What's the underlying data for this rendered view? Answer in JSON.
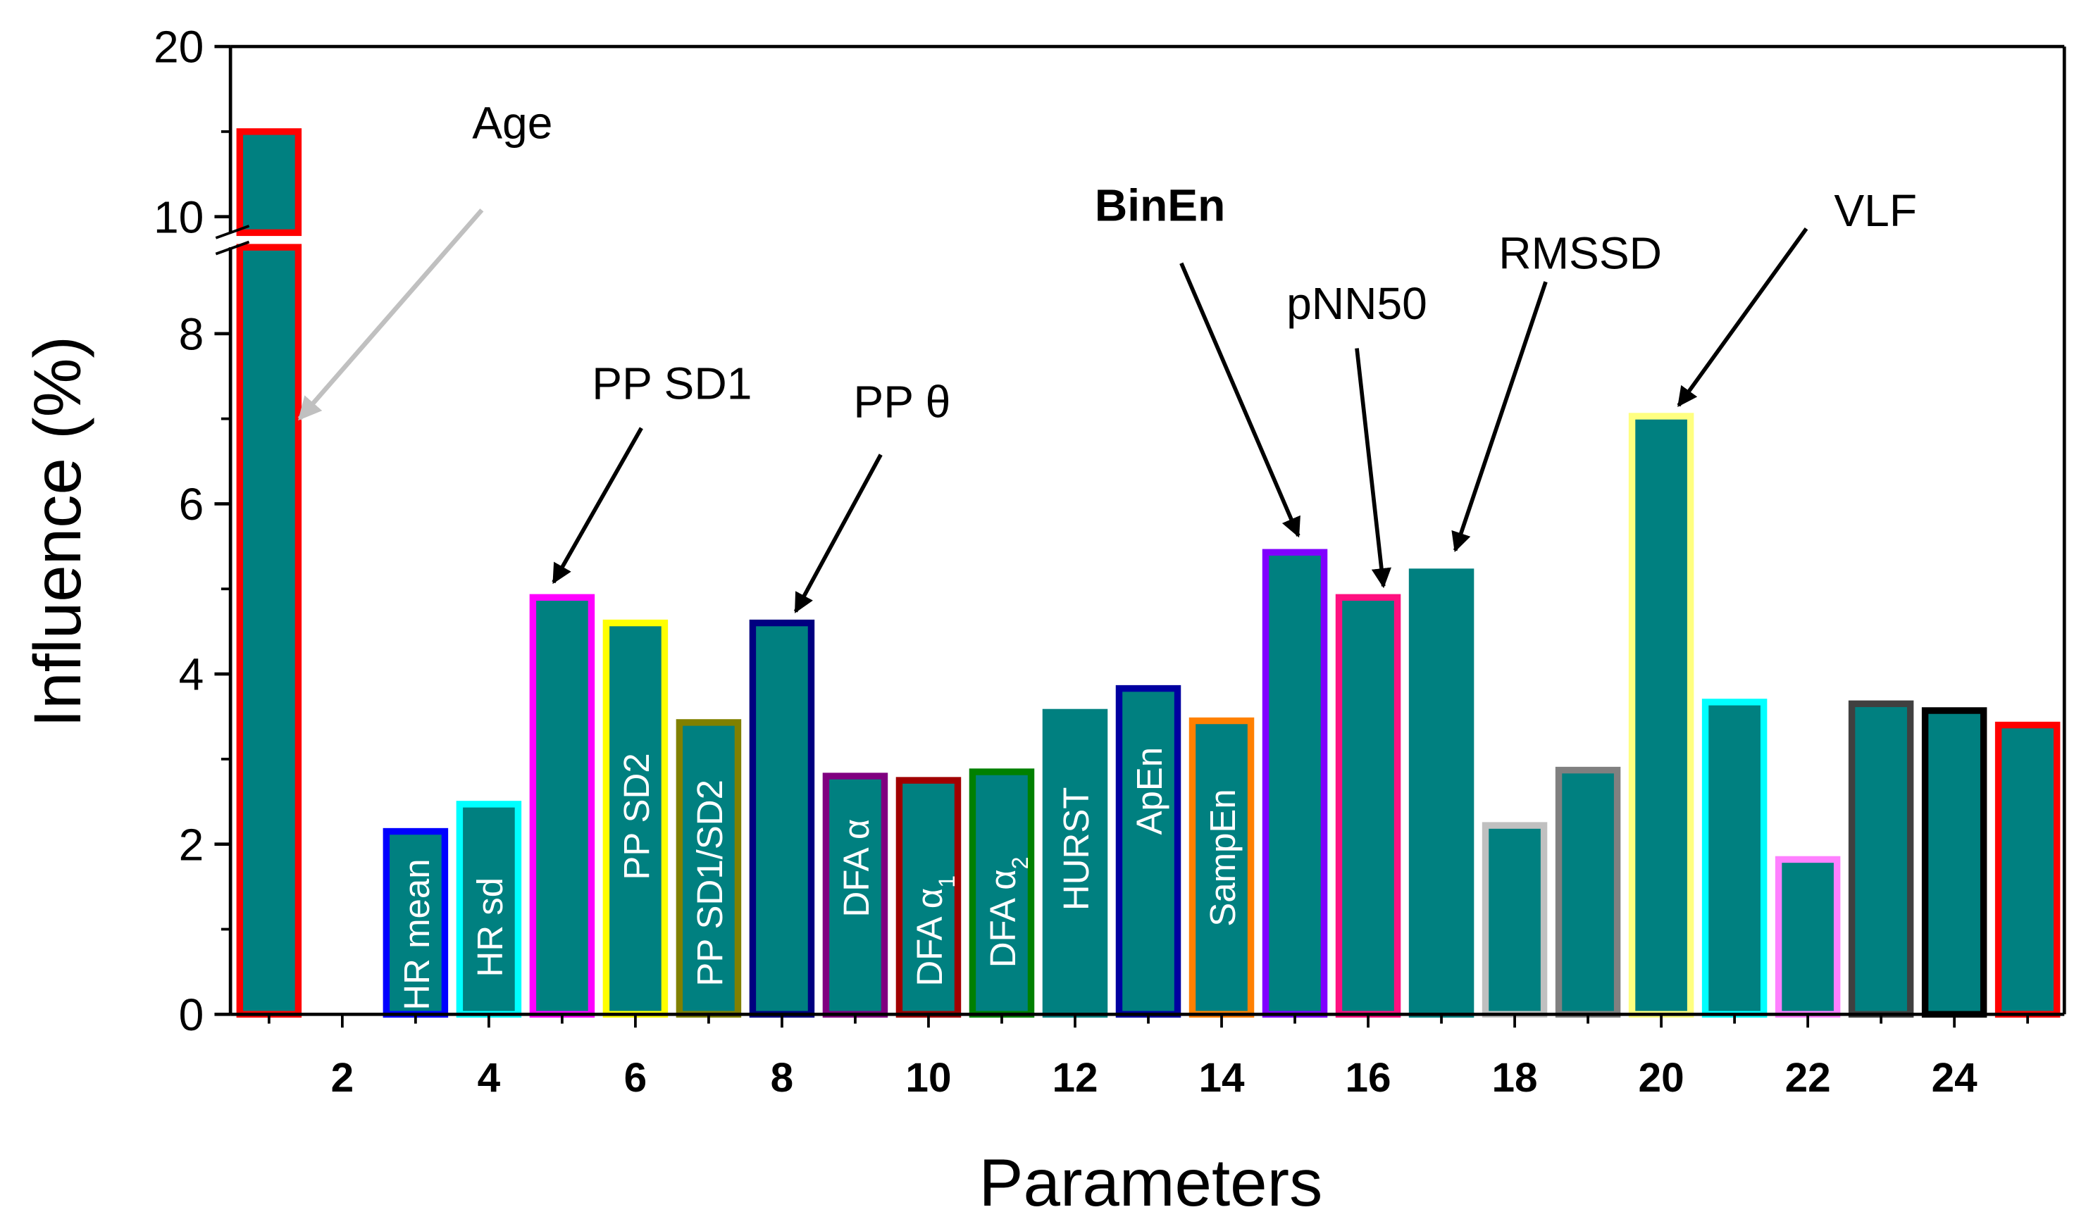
{
  "chart_data": {
    "type": "bar",
    "xlabel": "Parameters",
    "ylabel": "Influence (%)",
    "ylim": [
      0,
      20
    ],
    "y_break": [
      9.1,
      10
    ],
    "y_ticks_lower": [
      "0",
      "2",
      "4",
      "6",
      "8"
    ],
    "y_ticks_upper": [
      "10",
      "20"
    ],
    "x_ticks": [
      "2",
      "4",
      "6",
      "8",
      "10",
      "12",
      "14",
      "16",
      "18",
      "20",
      "22",
      "24"
    ],
    "x": [
      1,
      2,
      3,
      4,
      5,
      6,
      7,
      8,
      9,
      10,
      11,
      12,
      13,
      14,
      15,
      16,
      17,
      18,
      19,
      20,
      21,
      22,
      23,
      24,
      25
    ],
    "values": [
      15.0,
      0,
      2.15,
      2.47,
      4.9,
      4.6,
      3.43,
      4.6,
      2.8,
      2.75,
      2.85,
      3.55,
      3.83,
      3.45,
      5.43,
      4.9,
      5.2,
      2.22,
      2.87,
      7.03,
      3.67,
      1.82,
      3.65,
      3.57,
      3.4
    ],
    "fill_color": "#008080",
    "edge_colors": [
      "#ff0000",
      "#ffffff",
      "#0000ff",
      "#00ffff",
      "#ff00ff",
      "#ffff00",
      "#808000",
      "#000080",
      "#800080",
      "#a00000",
      "#008000",
      "#008080",
      "#0000a0",
      "#ff8000",
      "#8000ff",
      "#ff1080",
      "#008080",
      "#c0c0c0",
      "#808080",
      "#ffff80",
      "#00ffff",
      "#ff80ff",
      "#404040",
      "#000000",
      "#ff0000"
    ],
    "bar_labels": [
      {
        "x": 3,
        "text": "HR mean",
        "sub": ""
      },
      {
        "x": 4,
        "text": "HR sd",
        "sub": ""
      },
      {
        "x": 6,
        "text": "PP SD2",
        "sub": ""
      },
      {
        "x": 7,
        "text": "PP SD1/SD2",
        "sub": ""
      },
      {
        "x": 9,
        "text": "DFA α",
        "sub": ""
      },
      {
        "x": 10,
        "text": "DFA α",
        "sub": "1"
      },
      {
        "x": 11,
        "text": "DFA α",
        "sub": "2"
      },
      {
        "x": 12,
        "text": "HURST",
        "sub": ""
      },
      {
        "x": 13,
        "text": "ApEn",
        "sub": ""
      },
      {
        "x": 14,
        "text": "SampEn",
        "sub": ""
      }
    ],
    "annotations": [
      {
        "x": 1,
        "text": "Age",
        "bold": false,
        "arrow_color": "#c0c0c0"
      },
      {
        "x": 5,
        "text": "PP SD1",
        "bold": false,
        "arrow_color": "#000000"
      },
      {
        "x": 8,
        "text": "PP θ",
        "bold": false,
        "arrow_color": "#000000"
      },
      {
        "x": 15,
        "text": "BinEn",
        "bold": true,
        "arrow_color": "#000000"
      },
      {
        "x": 16,
        "text": "pNN50",
        "bold": false,
        "arrow_color": "#000000"
      },
      {
        "x": 17,
        "text": "RMSSD",
        "bold": false,
        "arrow_color": "#000000"
      },
      {
        "x": 20,
        "text": "VLF",
        "bold": false,
        "arrow_color": "#000000"
      }
    ]
  }
}
